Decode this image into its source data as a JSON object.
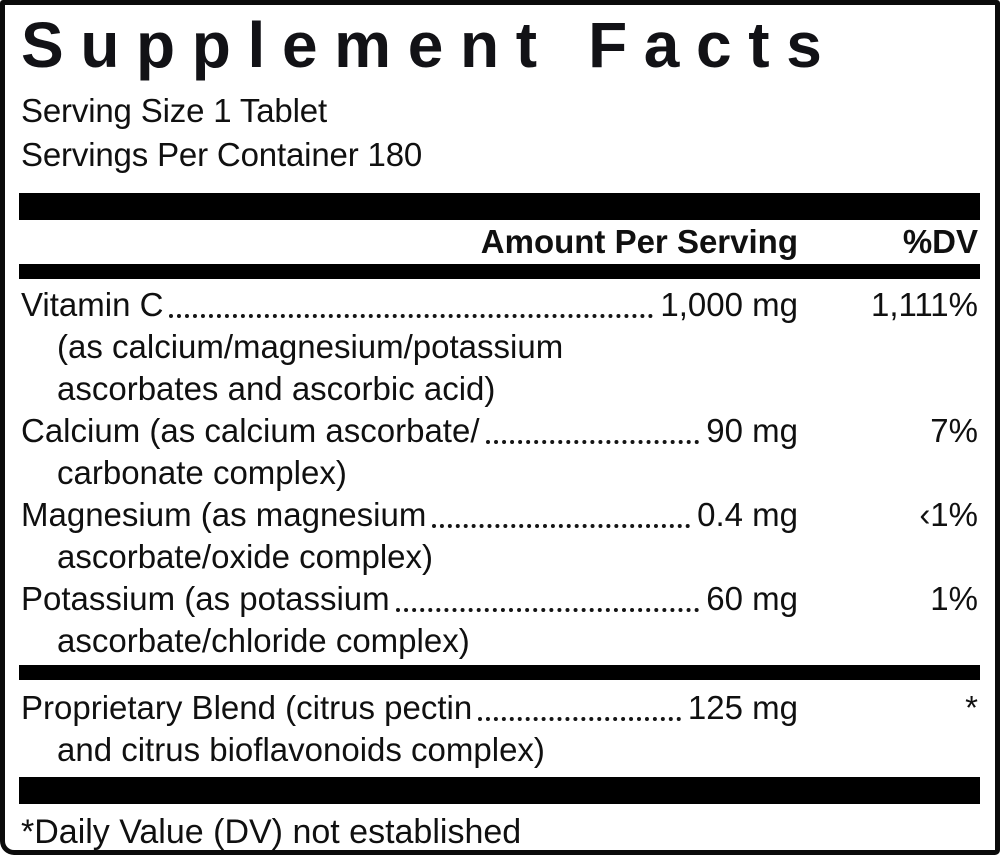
{
  "title": "Supplement Facts",
  "serving": {
    "size": "Serving Size 1 Tablet",
    "per_container": "Servings Per Container 180"
  },
  "header": {
    "amount": "Amount Per Serving",
    "dv": "%DV"
  },
  "rows": [
    {
      "name": "Vitamin C",
      "amount": "1,000 mg",
      "dv": "1,111%",
      "sub": [
        "(as calcium/magnesium/potassium",
        "ascorbates and ascorbic acid)"
      ]
    },
    {
      "name": "Calcium (as calcium ascorbate/",
      "amount": "90 mg",
      "dv": "7%",
      "sub": [
        "carbonate complex)"
      ]
    },
    {
      "name": "Magnesium (as magnesium",
      "amount": "0.4 mg",
      "dv": "‹1%",
      "sub": [
        "ascorbate/oxide complex)"
      ]
    },
    {
      "name": "Potassium (as potassium",
      "amount": "60 mg",
      "dv": "1%",
      "sub": [
        "ascorbate/chloride complex)"
      ]
    }
  ],
  "blend": {
    "name": "Proprietary Blend (citrus pectin",
    "amount": "125 mg",
    "dv": "*",
    "sub": [
      "and citrus bioflavonoids complex)"
    ]
  },
  "footnote": "*Daily Value (DV) not established"
}
